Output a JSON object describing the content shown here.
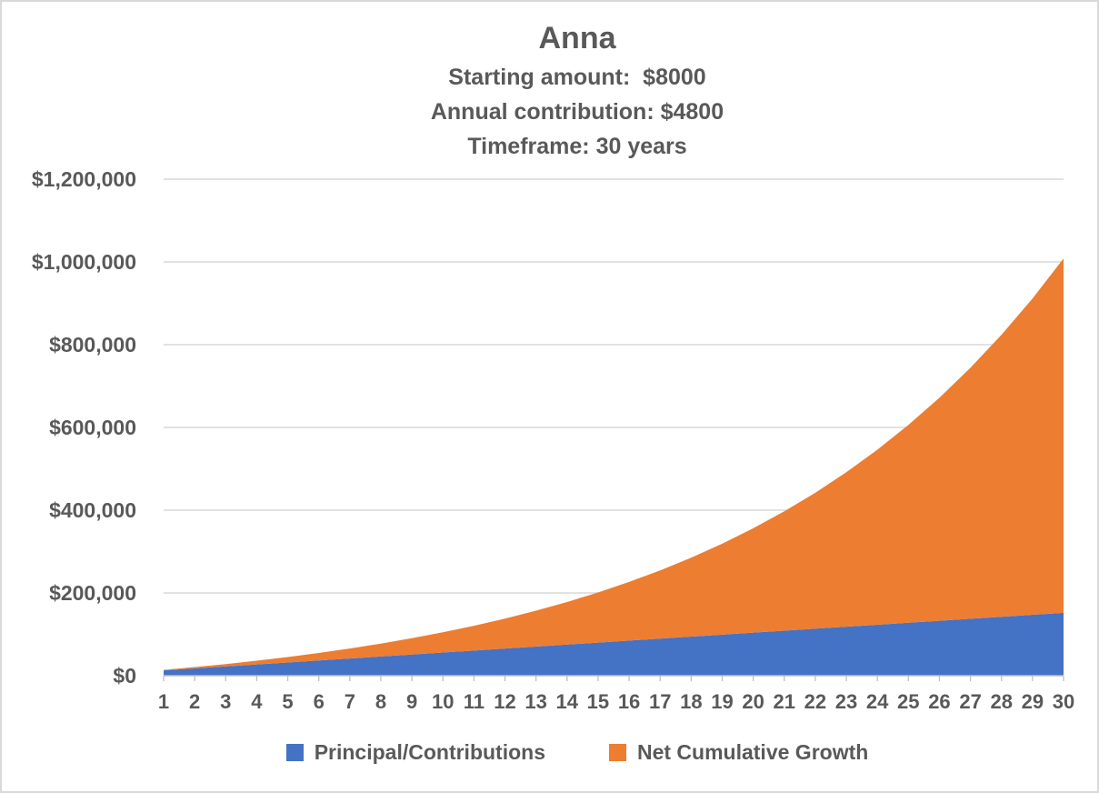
{
  "chart_data": {
    "type": "area",
    "stacked": true,
    "title": "Anna",
    "subtitle_lines": [
      "Starting amount:  $8000",
      "Annual contribution: $4800",
      "Timeframe: 30 years"
    ],
    "x": [
      1,
      2,
      3,
      4,
      5,
      6,
      7,
      8,
      9,
      10,
      11,
      12,
      13,
      14,
      15,
      16,
      17,
      18,
      19,
      20,
      21,
      22,
      23,
      24,
      25,
      26,
      27,
      28,
      29,
      30
    ],
    "xlabel": "",
    "ylabel": "",
    "ylim": [
      0,
      1200000
    ],
    "y_ticks": [
      0,
      200000,
      400000,
      600000,
      800000,
      1000000,
      1200000
    ],
    "y_tick_labels": [
      "$0",
      "$200,000",
      "$400,000",
      "$600,000",
      "$800,000",
      "$1,000,000",
      "$1,200,000"
    ],
    "grid": "horizontal",
    "legend_position": "bottom",
    "series": [
      {
        "name": "Principal/Contributions",
        "color": "#4472C4",
        "values": [
          12800,
          17600,
          22400,
          27200,
          32000,
          36800,
          41600,
          46400,
          51200,
          56000,
          60800,
          65600,
          70400,
          75200,
          80000,
          84800,
          89600,
          94400,
          99200,
          104000,
          108800,
          113600,
          118400,
          123200,
          128000,
          132800,
          137600,
          142400,
          147200,
          152000
        ]
      },
      {
        "name": "Net Cumulative Growth",
        "color": "#ED7D31",
        "values": [
          1280,
          3168,
          5725,
          9017,
          13119,
          18111,
          24082,
          31130,
          39363,
          48900,
          59870,
          72416,
          86698,
          102888,
          121177,
          141774,
          164912,
          190843,
          219847,
          252232,
          288335,
          328529,
          373222,
          422864,
          477950,
          539025,
          606688,
          681596,
          764476,
          856124
        ]
      }
    ],
    "stacked_totals": [
      14080,
      20768,
      28125,
      36217,
      45119,
      54911,
      65682,
      77530,
      90563,
      104900,
      120670,
      138016,
      157098,
      178088,
      201177,
      226574,
      254512,
      285243,
      319047,
      356232,
      397135,
      442129,
      491622,
      546064,
      605950,
      671825,
      744288,
      823996,
      911676,
      1008124
    ]
  },
  "colors": {
    "text": "#595959",
    "gridline": "#D9D9D9",
    "axis_line": "#BFBFBF",
    "background": "#FFFFFF",
    "border": "#D9D9D9"
  }
}
